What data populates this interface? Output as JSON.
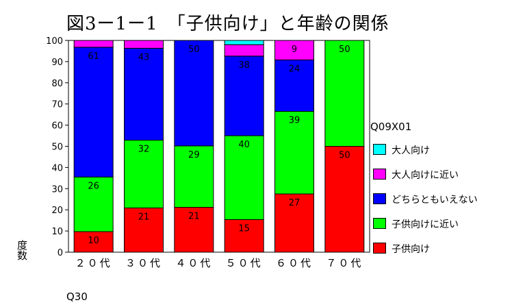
{
  "chart_data": {
    "type": "stacked_bar_100",
    "title": "図3ー1ー1　「子供向け」と年齢の関係",
    "xlabel": "Q30",
    "ylabel": "度数",
    "ylim": [
      0,
      100
    ],
    "yticks": [
      0,
      10,
      20,
      30,
      40,
      50,
      60,
      70,
      80,
      90,
      100
    ],
    "categories": [
      "２０代",
      "３０代",
      "４０代",
      "５０代",
      "６０代",
      "７０代"
    ],
    "legend_title": "Q09X01",
    "legend_position": "right",
    "series": [
      {
        "name": "子供向け",
        "color": "#ff0000",
        "values": [
          9.7,
          20.9,
          21.2,
          15.4,
          27.5,
          50.0
        ],
        "labels": [
          "10",
          "21",
          "21",
          "15",
          "27",
          "50"
        ]
      },
      {
        "name": "子供向けに近い",
        "color": "#00ff00",
        "values": [
          25.8,
          32.0,
          29.0,
          39.6,
          39.0,
          50.0
        ],
        "labels": [
          "26",
          "32",
          "29",
          "40",
          "39",
          "50"
        ]
      },
      {
        "name": "どちらともいえない",
        "color": "#0000ff",
        "values": [
          61.3,
          43.4,
          49.8,
          37.6,
          24.3,
          0
        ],
        "labels": [
          "61",
          "43",
          "50",
          "38",
          "24",
          ""
        ]
      },
      {
        "name": "大人向けに近い",
        "color": "#ff00ff",
        "values": [
          3.2,
          3.7,
          0,
          5.4,
          9.2,
          0
        ],
        "labels": [
          "",
          "",
          "",
          "",
          "9",
          ""
        ]
      },
      {
        "name": "大人向け",
        "color": "#00ffff",
        "values": [
          0,
          0,
          0,
          2.0,
          0,
          0
        ],
        "labels": [
          "",
          "",
          "",
          "",
          "",
          ""
        ]
      }
    ]
  }
}
